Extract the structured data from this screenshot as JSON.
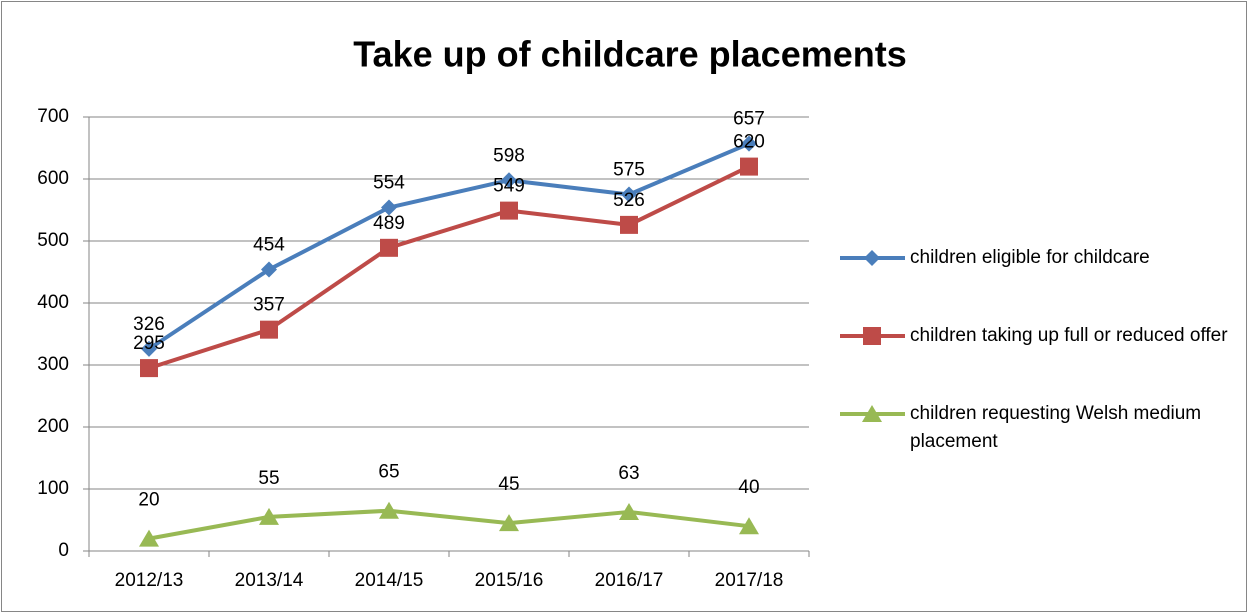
{
  "chart_data": {
    "type": "line",
    "title": "Take up of childcare placements",
    "categories": [
      "2012/13",
      "2013/14",
      "2014/15",
      "2015/16",
      "2016/17",
      "2017/18"
    ],
    "series": [
      {
        "name": "children eligible for childcare",
        "color": "#4a7ebb",
        "marker": "diamond",
        "values": [
          326,
          454,
          554,
          598,
          575,
          657
        ]
      },
      {
        "name": "children taking up full or reduced offer",
        "color": "#be4b48",
        "marker": "square",
        "values": [
          295,
          357,
          489,
          549,
          526,
          620
        ]
      },
      {
        "name": "children requesting Welsh medium placement",
        "color": "#98b954",
        "marker": "triangle",
        "values": [
          20,
          55,
          65,
          45,
          63,
          40
        ]
      }
    ],
    "ylim": [
      0,
      700
    ],
    "yticks": [
      0,
      100,
      200,
      300,
      400,
      500,
      600,
      700
    ],
    "grid": true,
    "legend": "right"
  }
}
